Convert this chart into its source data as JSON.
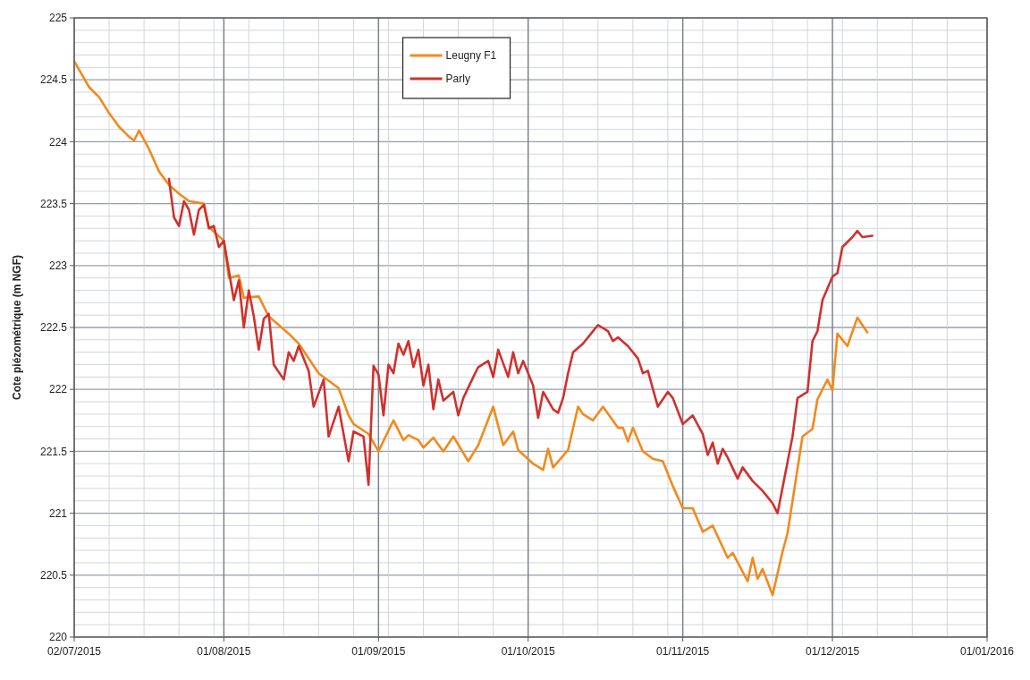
{
  "chart_data": {
    "type": "line",
    "ylabel": "Cote piézométrique (m NGF)",
    "xlim": [
      "2015-07-02",
      "2016-01-01"
    ],
    "ylim": [
      220,
      225
    ],
    "xticks": [
      {
        "value": "2015-07-02",
        "label": "02/07/2015"
      },
      {
        "value": "2015-08-01",
        "label": "01/08/2015"
      },
      {
        "value": "2015-09-01",
        "label": "01/09/2015"
      },
      {
        "value": "2015-10-01",
        "label": "01/10/2015"
      },
      {
        "value": "2015-11-01",
        "label": "01/11/2015"
      },
      {
        "value": "2015-12-01",
        "label": "01/12/2015"
      },
      {
        "value": "2016-01-01",
        "label": "01/01/2016"
      },
      {
        "value": "2015-07-09",
        "label": null
      },
      {
        "value": "2015-07-16",
        "label": null
      },
      {
        "value": "2015-07-23",
        "label": null
      },
      {
        "value": "2015-07-30",
        "label": null
      },
      {
        "value": "2015-08-06",
        "label": null
      },
      {
        "value": "2015-08-13",
        "label": null
      },
      {
        "value": "2015-08-20",
        "label": null
      },
      {
        "value": "2015-08-27",
        "label": null
      },
      {
        "value": "2015-09-03",
        "label": null
      },
      {
        "value": "2015-09-10",
        "label": null
      },
      {
        "value": "2015-09-17",
        "label": null
      },
      {
        "value": "2015-09-24",
        "label": null
      },
      {
        "value": "2015-10-08",
        "label": null
      },
      {
        "value": "2015-10-15",
        "label": null
      },
      {
        "value": "2015-10-22",
        "label": null
      },
      {
        "value": "2015-10-29",
        "label": null
      },
      {
        "value": "2015-11-05",
        "label": null
      },
      {
        "value": "2015-11-12",
        "label": null
      },
      {
        "value": "2015-11-19",
        "label": null
      },
      {
        "value": "2015-11-26",
        "label": null
      },
      {
        "value": "2015-12-03",
        "label": null
      },
      {
        "value": "2015-12-10",
        "label": null
      },
      {
        "value": "2015-12-17",
        "label": null
      },
      {
        "value": "2015-12-24",
        "label": null
      }
    ],
    "yticks": [
      220,
      220.5,
      221,
      221.5,
      222,
      222.5,
      223,
      223.5,
      224,
      224.5,
      225,
      {
        "value": 220.1,
        "label": null
      },
      {
        "value": 220.2,
        "label": null
      },
      {
        "value": 220.3,
        "label": null
      },
      {
        "value": 220.4,
        "label": null
      },
      {
        "value": 220.6,
        "label": null
      },
      {
        "value": 220.7,
        "label": null
      },
      {
        "value": 220.8,
        "label": null
      },
      {
        "value": 220.9,
        "label": null
      },
      {
        "value": 221.1,
        "label": null
      },
      {
        "value": 221.2,
        "label": null
      },
      {
        "value": 221.3,
        "label": null
      },
      {
        "value": 221.4,
        "label": null
      },
      {
        "value": 221.6,
        "label": null
      },
      {
        "value": 221.7,
        "label": null
      },
      {
        "value": 221.8,
        "label": null
      },
      {
        "value": 221.9,
        "label": null
      },
      {
        "value": 222.1,
        "label": null
      },
      {
        "value": 222.2,
        "label": null
      },
      {
        "value": 222.3,
        "label": null
      },
      {
        "value": 222.4,
        "label": null
      },
      {
        "value": 222.6,
        "label": null
      },
      {
        "value": 222.7,
        "label": null
      },
      {
        "value": 222.8,
        "label": null
      },
      {
        "value": 222.9,
        "label": null
      },
      {
        "value": 223.1,
        "label": null
      },
      {
        "value": 223.2,
        "label": null
      },
      {
        "value": 223.3,
        "label": null
      },
      {
        "value": 223.4,
        "label": null
      },
      {
        "value": 223.6,
        "label": null
      },
      {
        "value": 223.7,
        "label": null
      },
      {
        "value": 223.8,
        "label": null
      },
      {
        "value": 223.9,
        "label": null
      },
      {
        "value": 224.1,
        "label": null
      },
      {
        "value": 224.2,
        "label": null
      },
      {
        "value": 224.3,
        "label": null
      },
      {
        "value": 224.4,
        "label": null
      },
      {
        "value": 224.6,
        "label": null
      },
      {
        "value": 224.7,
        "label": null
      },
      {
        "value": 224.8,
        "label": null
      },
      {
        "value": 224.9,
        "label": null
      }
    ],
    "grid": true,
    "legend": "top",
    "marker": "none",
    "line_style": "solid",
    "series": [
      {
        "name": "Leugny F1",
        "color": "#f28a1c",
        "x": [
          "2015-07-02",
          "2015-07-03",
          "2015-07-05",
          "2015-07-07",
          "2015-07-09",
          "2015-07-11",
          "2015-07-13",
          "2015-07-14",
          "2015-07-15",
          "2015-07-17",
          "2015-07-19",
          "2015-07-21",
          "2015-07-23",
          "2015-07-25",
          "2015-07-28",
          "2015-07-29",
          "2015-08-01",
          "2015-08-02",
          "2015-08-04",
          "2015-08-05",
          "2015-08-08",
          "2015-08-10",
          "2015-08-14",
          "2015-08-16",
          "2015-08-20",
          "2015-08-24",
          "2015-08-26",
          "2015-08-27",
          "2015-08-30",
          "2015-09-01",
          "2015-09-04",
          "2015-09-06",
          "2015-09-07",
          "2015-09-09",
          "2015-09-10",
          "2015-09-12",
          "2015-09-14",
          "2015-09-16",
          "2015-09-19",
          "2015-09-21",
          "2015-09-24",
          "2015-09-26",
          "2015-09-28",
          "2015-09-29",
          "2015-10-02",
          "2015-10-04",
          "2015-10-05",
          "2015-10-06",
          "2015-10-09",
          "2015-10-11",
          "2015-10-12",
          "2015-10-14",
          "2015-10-16",
          "2015-10-19",
          "2015-10-20",
          "2015-10-21",
          "2015-10-22",
          "2015-10-24",
          "2015-10-26",
          "2015-10-28",
          "2015-10-30",
          "2015-11-01",
          "2015-11-03",
          "2015-11-05",
          "2015-11-07",
          "2015-11-10",
          "2015-11-11",
          "2015-11-14",
          "2015-11-15",
          "2015-11-16",
          "2015-11-17",
          "2015-11-19",
          "2015-11-21",
          "2015-11-22",
          "2015-11-25",
          "2015-11-27",
          "2015-11-28",
          "2015-11-30",
          "2015-12-01",
          "2015-12-02",
          "2015-12-04",
          "2015-12-06",
          "2015-12-08"
        ],
        "values": [
          224.65,
          224.58,
          224.44,
          224.36,
          224.23,
          224.12,
          224.04,
          224.01,
          224.09,
          223.94,
          223.76,
          223.65,
          223.58,
          223.52,
          223.5,
          223.31,
          223.2,
          222.9,
          222.92,
          222.74,
          222.75,
          222.59,
          222.45,
          222.37,
          222.13,
          222.01,
          221.79,
          221.72,
          221.64,
          221.5,
          221.75,
          221.59,
          221.63,
          221.59,
          221.53,
          221.61,
          221.5,
          221.62,
          221.42,
          221.55,
          221.86,
          221.55,
          221.66,
          221.51,
          221.4,
          221.35,
          221.52,
          221.37,
          221.51,
          221.86,
          221.8,
          221.75,
          221.86,
          221.69,
          221.69,
          221.58,
          221.69,
          221.5,
          221.44,
          221.42,
          221.22,
          221.04,
          221.04,
          220.85,
          220.9,
          220.64,
          220.68,
          220.45,
          220.64,
          220.47,
          220.55,
          220.34,
          220.69,
          220.84,
          221.62,
          221.68,
          221.92,
          222.08,
          221.99,
          222.45,
          222.35,
          222.58,
          222.46
        ]
      },
      {
        "name": "Parly",
        "color": "#d0312d",
        "x": [
          "2015-07-21",
          "2015-07-22",
          "2015-07-23",
          "2015-07-24",
          "2015-07-25",
          "2015-07-26",
          "2015-07-27",
          "2015-07-28",
          "2015-07-29",
          "2015-07-30",
          "2015-07-31",
          "2015-08-01",
          "2015-08-02",
          "2015-08-03",
          "2015-08-04",
          "2015-08-05",
          "2015-08-06",
          "2015-08-07",
          "2015-08-08",
          "2015-08-09",
          "2015-08-10",
          "2015-08-11",
          "2015-08-13",
          "2015-08-14",
          "2015-08-15",
          "2015-08-16",
          "2015-08-18",
          "2015-08-19",
          "2015-08-21",
          "2015-08-22",
          "2015-08-24",
          "2015-08-26",
          "2015-08-27",
          "2015-08-29",
          "2015-08-30",
          "2015-08-31",
          "2015-09-01",
          "2015-09-02",
          "2015-09-03",
          "2015-09-04",
          "2015-09-05",
          "2015-09-06",
          "2015-09-07",
          "2015-09-08",
          "2015-09-09",
          "2015-09-10",
          "2015-09-11",
          "2015-09-12",
          "2015-09-13",
          "2015-09-14",
          "2015-09-16",
          "2015-09-17",
          "2015-09-18",
          "2015-09-20",
          "2015-09-21",
          "2015-09-23",
          "2015-09-24",
          "2015-09-25",
          "2015-09-27",
          "2015-09-28",
          "2015-09-29",
          "2015-09-30",
          "2015-10-02",
          "2015-10-03",
          "2015-10-04",
          "2015-10-06",
          "2015-10-07",
          "2015-10-08",
          "2015-10-09",
          "2015-10-10",
          "2015-10-12",
          "2015-10-14",
          "2015-10-15",
          "2015-10-17",
          "2015-10-18",
          "2015-10-19",
          "2015-10-21",
          "2015-10-23",
          "2015-10-24",
          "2015-10-25",
          "2015-10-27",
          "2015-10-29",
          "2015-10-30",
          "2015-11-01",
          "2015-11-03",
          "2015-11-05",
          "2015-11-06",
          "2015-11-07",
          "2015-11-08",
          "2015-11-09",
          "2015-11-10",
          "2015-11-12",
          "2015-11-13",
          "2015-11-15",
          "2015-11-17",
          "2015-11-19",
          "2015-11-20",
          "2015-11-23",
          "2015-11-24",
          "2015-11-26",
          "2015-11-27",
          "2015-11-28",
          "2015-11-29",
          "2015-12-01",
          "2015-12-02",
          "2015-12-03",
          "2015-12-05",
          "2015-12-06",
          "2015-12-07",
          "2015-12-09"
        ],
        "values": [
          223.7,
          223.39,
          223.32,
          223.52,
          223.45,
          223.25,
          223.45,
          223.49,
          223.3,
          223.32,
          223.15,
          223.2,
          222.96,
          222.72,
          222.88,
          222.5,
          222.8,
          222.59,
          222.32,
          222.57,
          222.61,
          222.2,
          222.08,
          222.3,
          222.23,
          222.35,
          222.15,
          221.86,
          222.08,
          221.62,
          221.86,
          221.42,
          221.66,
          221.62,
          221.23,
          222.19,
          222.12,
          221.79,
          222.2,
          222.13,
          222.37,
          222.28,
          222.39,
          222.18,
          222.32,
          222.03,
          222.2,
          221.84,
          222.08,
          221.91,
          221.98,
          221.79,
          221.93,
          222.1,
          222.18,
          222.23,
          222.1,
          222.32,
          222.1,
          222.3,
          222.13,
          222.23,
          222.03,
          221.77,
          221.98,
          221.84,
          221.81,
          221.93,
          222.13,
          222.3,
          222.37,
          222.47,
          222.52,
          222.47,
          222.39,
          222.42,
          222.35,
          222.25,
          222.13,
          222.15,
          221.86,
          221.98,
          221.93,
          221.72,
          221.79,
          221.64,
          221.47,
          221.57,
          221.4,
          221.52,
          221.45,
          221.28,
          221.37,
          221.26,
          221.18,
          221.08,
          221.0,
          221.62,
          221.93,
          221.98,
          222.39,
          222.47,
          222.72,
          222.91,
          222.94,
          223.15,
          223.23,
          223.28,
          223.23,
          223.24
        ]
      }
    ]
  }
}
